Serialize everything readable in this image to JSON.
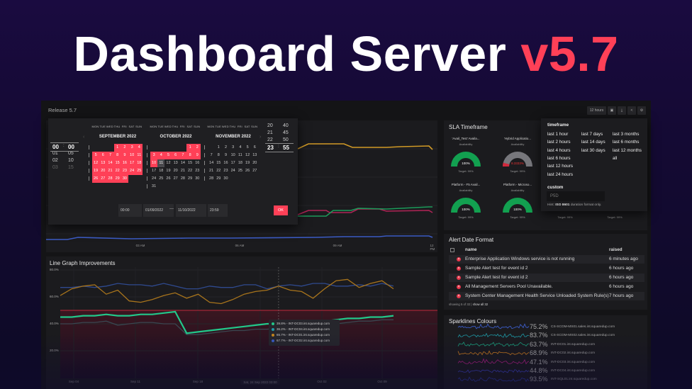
{
  "hero": {
    "title": "Dashboard Server",
    "version": "v5.7"
  },
  "dashboard": {
    "name": "Release 5.7",
    "toolbar": {
      "timeframe_label": "12 hours",
      "icons": [
        "monitor-icon",
        "download-icon",
        "share-icon",
        "gear-icon"
      ]
    }
  },
  "calendar": {
    "weekdays": [
      "MON",
      "TUE",
      "WED",
      "THU",
      "FRI",
      "SAT",
      "SUN"
    ],
    "months": [
      {
        "title": "SEPTEMBER 2022",
        "offset": 3,
        "days": 30,
        "selected_to": 30,
        "current": null
      },
      {
        "title": "OCTOBER 2022",
        "offset": 5,
        "days": 31,
        "selected_to": 10,
        "current": 11
      },
      {
        "title": "NOVEMBER 2022",
        "offset": 1,
        "days": 30,
        "selected_to": 0,
        "current": null
      }
    ],
    "start_time_picker": {
      "hours": [
        "00",
        "01",
        "02",
        "03"
      ],
      "minutes": [
        "00",
        "05",
        "10",
        "15"
      ]
    },
    "end_time_picker": {
      "hours": [
        "20",
        "21",
        "22",
        "23"
      ],
      "minutes": [
        "40",
        "45",
        "50",
        "55"
      ]
    },
    "start_time": "00:00",
    "start_date": "01/09/2022",
    "separator": "—",
    "end_date": "11/10/2022",
    "end_time": "23:59",
    "ok_label": "OK",
    "accent": "#ff4057"
  },
  "top_chart": {
    "x_labels": [
      "03 AM",
      "06 AM",
      "09 AM",
      "12 PM"
    ]
  },
  "sla": {
    "title": "SLA Timeframe",
    "gauges": [
      {
        "name": "'Avail_Test' Availa...",
        "metric": "Availability",
        "value": "100%",
        "percent": 100,
        "target": "Target: 99%"
      },
      {
        "name": "'Hybrid Applicatio...",
        "metric": "Availability",
        "value": "8.3333%",
        "percent": 8.3333,
        "target": "Target: 99%"
      },
      {
        "name": "Platform - F5 Avail...",
        "metric": "Availability",
        "value": "100%",
        "percent": 100,
        "target": "Target: 99%"
      },
      {
        "name": "Platform - Microso...",
        "metric": "Availability",
        "value": "100%",
        "percent": 100,
        "target": "Target: 99%"
      }
    ],
    "hidden_targets": [
      "Target: 99%",
      "Target: 99%"
    ]
  },
  "timeframe_menu": {
    "title": "timeframe",
    "col1": [
      "last 1 hour",
      "last 2 hours",
      "last 4 hours",
      "last 6 hours",
      "last 12 hours",
      "last 24 hours"
    ],
    "col2": [
      "last 7 days",
      "last 14 days",
      "last 30 days"
    ],
    "col3": [
      "last 3 months",
      "last 6 months",
      "last 12 months",
      "all"
    ],
    "custom_label": "custom",
    "custom_placeholder": "P5D",
    "hint_prefix": "Hint: ",
    "hint_bold": "ISO 8601",
    "hint_suffix": " duration format only."
  },
  "alerts": {
    "title": "Alert Date Format",
    "columns": [
      "name",
      "raised"
    ],
    "rows": [
      {
        "name": "Enterprise Application Windows service is not running",
        "raised": "6 minutes ago"
      },
      {
        "name": "Sample Alert test for event id 2",
        "raised": "6 hours ago"
      },
      {
        "name": "Sample Alert test for event id 2",
        "raised": "6 hours ago"
      },
      {
        "name": "All Management Servers Pool Unavailable.",
        "raised": "6 hours ago"
      },
      {
        "name": "System Center Management Health Service Unloaded System Rule(s)",
        "raised": "7 hours ago"
      }
    ],
    "footer": "showing 5 of 32 | ",
    "show_all": "show all 32"
  },
  "sparklines": {
    "title": "Sparklines Colours",
    "rows": [
      {
        "value": "75.2%",
        "host": "CS-SCOM-MS01.sales.int.squaredup.com",
        "color": "#3b5bc4"
      },
      {
        "value": "83.7%",
        "host": "CS-SCOM-MS02.sales.int.squaredup.com",
        "color": "#1f8f9a"
      },
      {
        "value": "63.7%",
        "host": "INT-DC01.int.squaredup.com",
        "color": "#1c9a78"
      },
      {
        "value": "68.9%",
        "host": "INT-DC02.int.squaredup.com",
        "color": "#c4781e"
      },
      {
        "value": "47.1%",
        "host": "INT-DC03.int.squaredup.com",
        "color": "#a3207a"
      },
      {
        "value": "44.8%",
        "host": "INT-DC04.int.squaredup.com",
        "color": "#3a3fb0"
      },
      {
        "value": "93.5%",
        "host": "INT-SQL01.int.squaredup.com",
        "color": "#2d3a9a"
      }
    ]
  },
  "chart_data": {
    "type": "line",
    "title": "Line Graph Improvements",
    "ylim": [
      0,
      80
    ],
    "y_ticks": [
      "80.0%",
      "60.0%",
      "40.0%",
      "20.0%"
    ],
    "y_tick_values": [
      80,
      60,
      40,
      20
    ],
    "x_labels": [
      "Sep 04",
      "Sep 11",
      "Sep 18",
      "Sat, 24 Sep 2022 03:00",
      "Oct 02",
      "Oct 09"
    ],
    "threshold": 50,
    "threshold_color": "#c0283c",
    "grid": true,
    "hover_index": 19,
    "series": [
      {
        "color": "#2f4a8f",
        "values": [
          67,
          67,
          68,
          67,
          68,
          70,
          69,
          69,
          68,
          70,
          68,
          66,
          66,
          68,
          67,
          67,
          69,
          69,
          66,
          68,
          69,
          68,
          70,
          70,
          68,
          68,
          69,
          68,
          70,
          68
        ]
      },
      {
        "color": "#a8741c",
        "values": [
          61,
          66,
          68,
          69,
          62,
          65,
          57,
          56,
          58,
          61,
          63,
          59,
          62,
          56,
          55,
          58,
          62,
          64,
          65,
          68,
          65,
          64,
          59,
          66,
          72,
          73,
          67,
          70,
          72,
          66
        ]
      },
      {
        "color": "#3a4650",
        "values": [
          40,
          40,
          41,
          41,
          42,
          39,
          40,
          41,
          41,
          40,
          40,
          32,
          32,
          33,
          34,
          35,
          35,
          36,
          36,
          37,
          38,
          38,
          39,
          40,
          40,
          41,
          42,
          42,
          43,
          43
        ]
      },
      {
        "color": "#22c88a",
        "values": [
          45,
          45,
          46,
          46,
          47,
          46,
          46,
          47,
          47,
          48,
          49,
          33,
          34,
          35,
          36,
          37,
          38,
          39,
          40,
          40,
          41,
          41,
          42,
          42,
          43,
          44,
          44,
          45,
          45,
          46
        ]
      }
    ],
    "tooltip": [
      {
        "value": "39.8%",
        "host": "INT-DC03.int.squaredup.com",
        "color": "#22c88a"
      },
      {
        "value": "36.2%",
        "host": "INT-DC04.int.squaredup.com",
        "color": "#1f9aa8"
      },
      {
        "value": "65.7%",
        "host": "INT-DC01.int.squaredup.com",
        "color": "#c4861e"
      },
      {
        "value": "67.7%",
        "host": "INT-DC02.int.squaredup.com",
        "color": "#3b5bc4"
      }
    ]
  }
}
